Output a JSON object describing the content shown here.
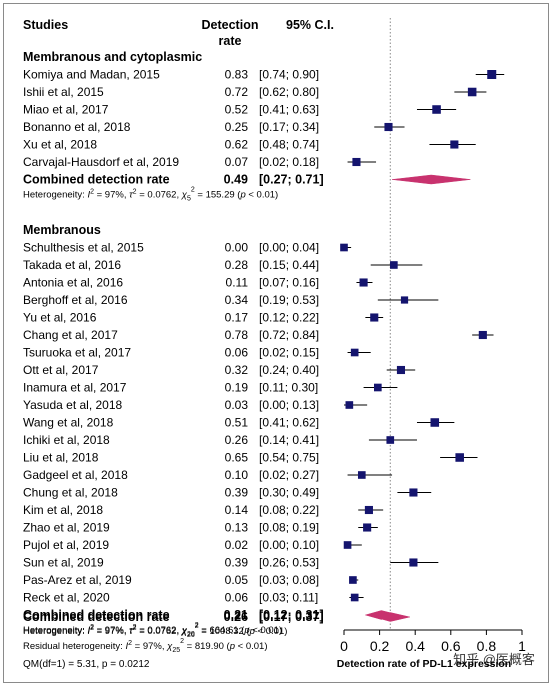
{
  "chart_data": {
    "type": "forest",
    "columns": {
      "studies": "Studies",
      "rate_line1": "Detection",
      "rate_line2": "rate",
      "ci": "95% C.I."
    },
    "xaxis": {
      "label": "Detection rate of PD-L1 expression",
      "ticks": [
        "0",
        "0.2",
        "0.4",
        "0.6",
        "0.8",
        "1"
      ],
      "xlim": [
        0,
        1
      ],
      "reference_line": 0.26
    },
    "colors": {
      "square": "#14146e",
      "diamond": "#c8326e",
      "refline": "#8a8a8a"
    },
    "groups": [
      {
        "name": "Membranous and cytoplasmic",
        "studies": [
          {
            "study": "Komiya and Madan, 2015",
            "rate": 0.83,
            "lo": 0.74,
            "hi": 0.9,
            "rate_text": "0.83",
            "ci_text": "[0.74; 0.90]",
            "weight": 1.0
          },
          {
            "study": "Ishii et al, 2015",
            "rate": 0.72,
            "lo": 0.62,
            "hi": 0.8,
            "rate_text": "0.72",
            "ci_text": "[0.62; 0.80]",
            "weight": 0.95
          },
          {
            "study": "Miao et al, 2017",
            "rate": 0.52,
            "lo": 0.41,
            "hi": 0.63,
            "rate_text": "0.52",
            "ci_text": "[0.41; 0.63]",
            "weight": 0.95
          },
          {
            "study": "Bonanno et al, 2018",
            "rate": 0.25,
            "lo": 0.17,
            "hi": 0.34,
            "rate_text": "0.25",
            "ci_text": "[0.17; 0.34]",
            "weight": 0.9
          },
          {
            "study": "Xu et al, 2018",
            "rate": 0.62,
            "lo": 0.48,
            "hi": 0.74,
            "rate_text": "0.62",
            "ci_text": "[0.48; 0.74]",
            "weight": 0.9
          },
          {
            "study": "Carvajal-Hausdorf et al, 2019",
            "rate": 0.07,
            "lo": 0.02,
            "hi": 0.18,
            "rate_text": "0.07",
            "ci_text": "[0.02; 0.18]",
            "weight": 0.9
          }
        ],
        "combined": {
          "label": "Combined detection rate",
          "rate": 0.49,
          "lo": 0.27,
          "hi": 0.71,
          "rate_text": "0.49",
          "ci_text": "[0.27; 0.71]"
        },
        "heterogeneity": {
          "i2": "97%",
          "tau2": "0.0762",
          "chi_df": "5",
          "chi_val": "155.29",
          "p": "0.01"
        }
      },
      {
        "name": "Membranous",
        "studies": [
          {
            "study": "Schulthesis et al, 2015",
            "rate": 0.0,
            "lo": 0.0,
            "hi": 0.04,
            "rate_text": "0.00",
            "ci_text": "[0.00; 0.04]",
            "weight": 0.85
          },
          {
            "study": "Takada et al, 2016",
            "rate": 0.28,
            "lo": 0.15,
            "hi": 0.44,
            "rate_text": "0.28",
            "ci_text": "[0.15; 0.44]",
            "weight": 0.85
          },
          {
            "study": "Antonia et al, 2016",
            "rate": 0.11,
            "lo": 0.07,
            "hi": 0.16,
            "rate_text": "0.11",
            "ci_text": "[0.07; 0.16]",
            "weight": 0.9
          },
          {
            "study": "Berghoff et al, 2016",
            "rate": 0.34,
            "lo": 0.19,
            "hi": 0.53,
            "rate_text": "0.34",
            "ci_text": "[0.19; 0.53]",
            "weight": 0.8
          },
          {
            "study": "Yu et al, 2016",
            "rate": 0.17,
            "lo": 0.12,
            "hi": 0.22,
            "rate_text": "0.17",
            "ci_text": "[0.12; 0.22]",
            "weight": 0.9
          },
          {
            "study": "Chang et al, 2017",
            "rate": 0.78,
            "lo": 0.72,
            "hi": 0.84,
            "rate_text": "0.78",
            "ci_text": "[0.72; 0.84]",
            "weight": 0.9
          },
          {
            "study": "Tsuruoka et al, 2017",
            "rate": 0.06,
            "lo": 0.02,
            "hi": 0.15,
            "rate_text": "0.06",
            "ci_text": "[0.02; 0.15]",
            "weight": 0.85
          },
          {
            "study": "Ott et al, 2017",
            "rate": 0.32,
            "lo": 0.24,
            "hi": 0.4,
            "rate_text": "0.32",
            "ci_text": "[0.24; 0.40]",
            "weight": 0.9
          },
          {
            "study": "Inamura et al, 2017",
            "rate": 0.19,
            "lo": 0.11,
            "hi": 0.3,
            "rate_text": "0.19",
            "ci_text": "[0.11; 0.30]",
            "weight": 0.85
          },
          {
            "study": "Yasuda et al, 2018",
            "rate": 0.03,
            "lo": 0.0,
            "hi": 0.13,
            "rate_text": "0.03",
            "ci_text": "[0.00; 0.13]",
            "weight": 0.85
          },
          {
            "study": "Wang et al, 2018",
            "rate": 0.51,
            "lo": 0.41,
            "hi": 0.62,
            "rate_text": "0.51",
            "ci_text": "[0.41; 0.62]",
            "weight": 0.95
          },
          {
            "study": "Ichiki et al, 2018",
            "rate": 0.26,
            "lo": 0.14,
            "hi": 0.41,
            "rate_text": "0.26",
            "ci_text": "[0.14; 0.41]",
            "weight": 0.85
          },
          {
            "study": "Liu et al, 2018",
            "rate": 0.65,
            "lo": 0.54,
            "hi": 0.75,
            "rate_text": "0.65",
            "ci_text": "[0.54; 0.75]",
            "weight": 0.95
          },
          {
            "study": "Gadgeel et al, 2018",
            "rate": 0.1,
            "lo": 0.02,
            "hi": 0.27,
            "rate_text": "0.10",
            "ci_text": "[0.02; 0.27]",
            "weight": 0.85
          },
          {
            "study": "Chung et al, 2018",
            "rate": 0.39,
            "lo": 0.3,
            "hi": 0.49,
            "rate_text": "0.39",
            "ci_text": "[0.30; 0.49]",
            "weight": 0.9
          },
          {
            "study": "Kim et al, 2018",
            "rate": 0.14,
            "lo": 0.08,
            "hi": 0.22,
            "rate_text": "0.14",
            "ci_text": "[0.08; 0.22]",
            "weight": 0.9
          },
          {
            "study": "Zhao et al, 2019",
            "rate": 0.13,
            "lo": 0.08,
            "hi": 0.19,
            "rate_text": "0.13",
            "ci_text": "[0.08; 0.19]",
            "weight": 0.9
          },
          {
            "study": "Pujol et al, 2019",
            "rate": 0.02,
            "lo": 0.0,
            "hi": 0.1,
            "rate_text": "0.02",
            "ci_text": "[0.00; 0.10]",
            "weight": 0.85
          },
          {
            "study": "Sun et al, 2019",
            "rate": 0.39,
            "lo": 0.26,
            "hi": 0.53,
            "rate_text": "0.39",
            "ci_text": "[0.26; 0.53]",
            "weight": 0.9
          },
          {
            "study": "Pas-Arez et al, 2019",
            "rate": 0.05,
            "lo": 0.03,
            "hi": 0.08,
            "rate_text": "0.05",
            "ci_text": "[0.03; 0.08]",
            "weight": 0.85
          },
          {
            "study": "Reck et al, 2020",
            "rate": 0.06,
            "lo": 0.03,
            "hi": 0.11,
            "rate_text": "0.06",
            "ci_text": "[0.03; 0.11]",
            "weight": 0.85
          }
        ],
        "combined": {
          "label": "Combined detection rate",
          "rate": 0.21,
          "lo": 0.12,
          "hi": 0.31,
          "rate_text": "0.21",
          "ci_text": "[0.12; 0.31]"
        },
        "heterogeneity": {
          "i2": "97%",
          "tau2": "0.0762",
          "chi_df": "20",
          "chi_val": "664.61",
          "p": "0.01"
        }
      }
    ],
    "overall": {
      "label": "Combined detection rate",
      "rate": 0.26,
      "lo": 0.17,
      "hi": 0.37,
      "rate_text": "0.26",
      "ci_text": "[0.17; 0.37]",
      "heterogeneity": {
        "i2": "97%",
        "tau2": "0.0762",
        "chi_df": "26",
        "chi_val": "1008.32",
        "p": "0.01"
      },
      "residual": {
        "label": "Residual heterogeneity:",
        "i2": "97%",
        "chi_df": "25",
        "chi_val": "819.90",
        "p": "0.01"
      },
      "qm": "QM(df=1) = 5.31, p = 0.0212"
    },
    "watermark": "知乎 @医概客"
  }
}
